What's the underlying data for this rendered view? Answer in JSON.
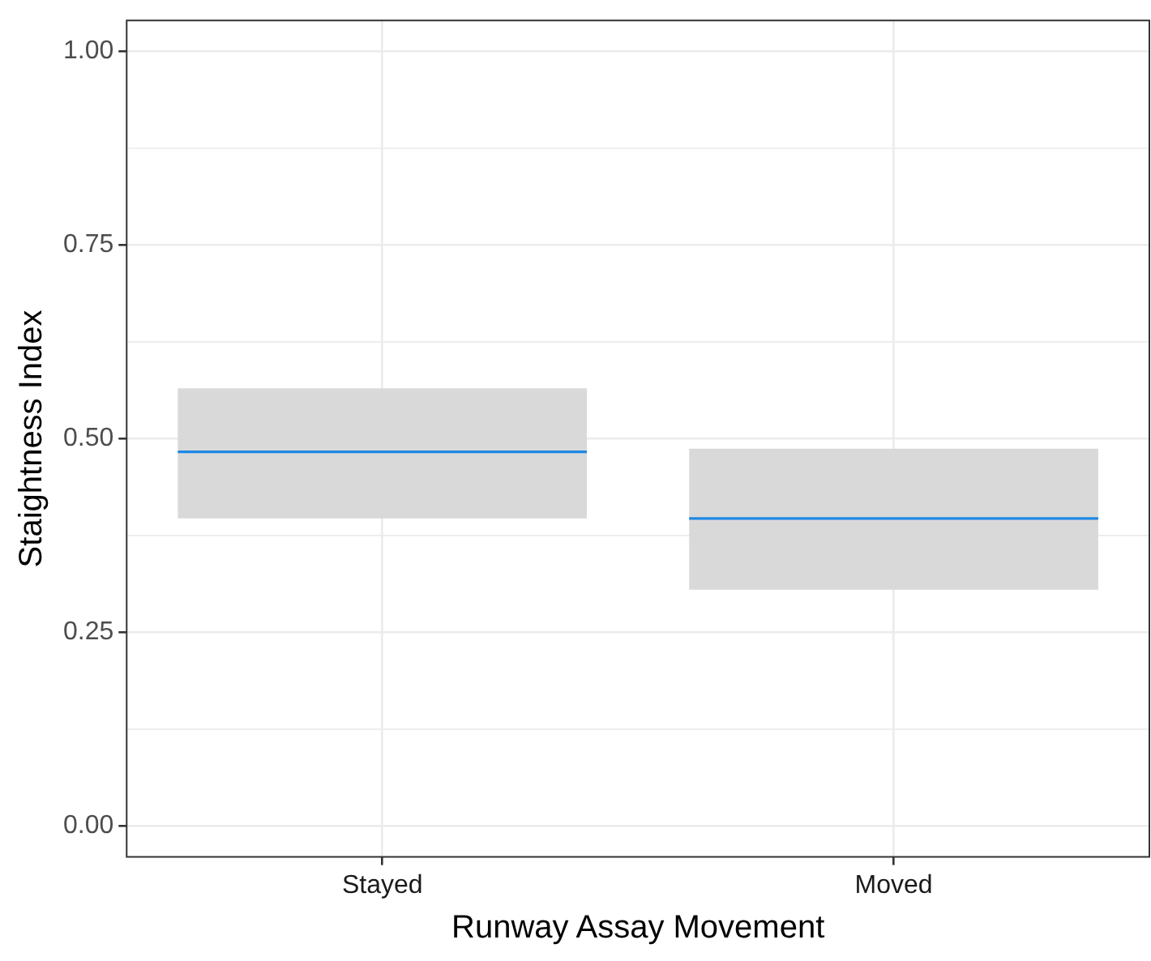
{
  "chart_data": {
    "type": "box",
    "xlabel": "Runway Assay Movement",
    "ylabel": "Staightness Index",
    "categories": [
      "Stayed",
      "Moved"
    ],
    "boxes": [
      {
        "low": 0.397,
        "q1": 0.397,
        "median": 0.483,
        "q3": 0.565,
        "high": 0.565
      },
      {
        "low": 0.305,
        "q1": 0.305,
        "median": 0.397,
        "q3": 0.487,
        "high": 0.487
      }
    ],
    "color": "#d9d9d9",
    "ylim": [
      -0.04,
      1.04
    ],
    "yticks": [
      {
        "value": 0,
        "label": "0.00"
      },
      {
        "value": 0.25,
        "label": "0.25"
      },
      {
        "value": 0.5,
        "label": "0.50"
      },
      {
        "value": 0.75,
        "label": "0.75"
      },
      {
        "value": 1,
        "label": "1.00"
      }
    ],
    "grid": true
  }
}
